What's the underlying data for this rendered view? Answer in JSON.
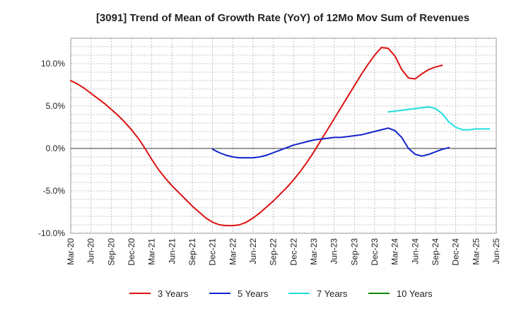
{
  "chart_data": {
    "type": "line",
    "title": "[3091]  Trend of Mean of Growth Rate (YoY) of 12Mo Mov Sum of Revenues",
    "xlabel": "",
    "ylabel": "",
    "ylim": [
      -10,
      13
    ],
    "x_ticks": [
      "Mar-20",
      "Jun-20",
      "Sep-20",
      "Dec-20",
      "Mar-21",
      "Jun-21",
      "Sep-21",
      "Dec-21",
      "Mar-22",
      "Jun-22",
      "Sep-22",
      "Dec-22",
      "Mar-23",
      "Jun-23",
      "Sep-23",
      "Dec-23",
      "Mar-24",
      "Jun-24",
      "Sep-24",
      "Dec-24",
      "Mar-25",
      "Jun-25"
    ],
    "y_ticks": [
      {
        "value": 10,
        "label": "10.0%"
      },
      {
        "value": 5,
        "label": "5.0%"
      },
      {
        "value": 0,
        "label": "0.0%"
      },
      {
        "value": -5,
        "label": "-5.0%"
      },
      {
        "value": -10,
        "label": "-10.0%"
      }
    ],
    "grid": true,
    "legend_position": "bottom",
    "series": [
      {
        "name": "3 Years",
        "color": "#dd1111",
        "start_index": 0,
        "values": [
          8.0,
          7.6,
          7.1,
          6.5,
          5.9,
          5.3,
          4.6,
          3.9,
          3.1,
          2.2,
          1.2,
          0.0,
          -1.3,
          -2.5,
          -3.5,
          -4.4,
          -5.2,
          -6.0,
          -6.8,
          -7.5,
          -8.2,
          -8.7,
          -9.0,
          -9.1,
          -9.1,
          -9.0,
          -8.7,
          -8.2,
          -7.6,
          -6.9,
          -6.2,
          -5.4,
          -4.6,
          -3.7,
          -2.7,
          -1.6,
          -0.4,
          0.9,
          2.2,
          3.5,
          4.8,
          6.1,
          7.4,
          8.7,
          9.9,
          11.0,
          11.9,
          11.8,
          10.9,
          9.3,
          8.3,
          8.2,
          8.8,
          9.3,
          9.6,
          9.8
        ]
      },
      {
        "name": "5 Years",
        "color": "#1122cc",
        "start_index": 21,
        "values": [
          -0.1,
          -0.5,
          -0.8,
          -1.0,
          -1.1,
          -1.1,
          -1.1,
          -1.0,
          -0.8,
          -0.5,
          -0.2,
          0.1,
          0.4,
          0.6,
          0.8,
          1.0,
          1.1,
          1.2,
          1.3,
          1.3,
          1.4,
          1.5,
          1.6,
          1.8,
          2.0,
          2.2,
          2.4,
          2.1,
          1.3,
          0.0,
          -0.7,
          -0.9,
          -0.7,
          -0.4,
          -0.1,
          0.1
        ]
      },
      {
        "name": "7 Years",
        "color": "#22dddd",
        "start_index": 47,
        "values": [
          4.3,
          4.4,
          4.5,
          4.6,
          4.7,
          4.8,
          4.9,
          4.7,
          4.1,
          3.1,
          2.5,
          2.2,
          2.2,
          2.3,
          2.3,
          2.3
        ]
      },
      {
        "name": "10 Years",
        "color": "#118811",
        "start_index": 0,
        "values": []
      }
    ]
  }
}
